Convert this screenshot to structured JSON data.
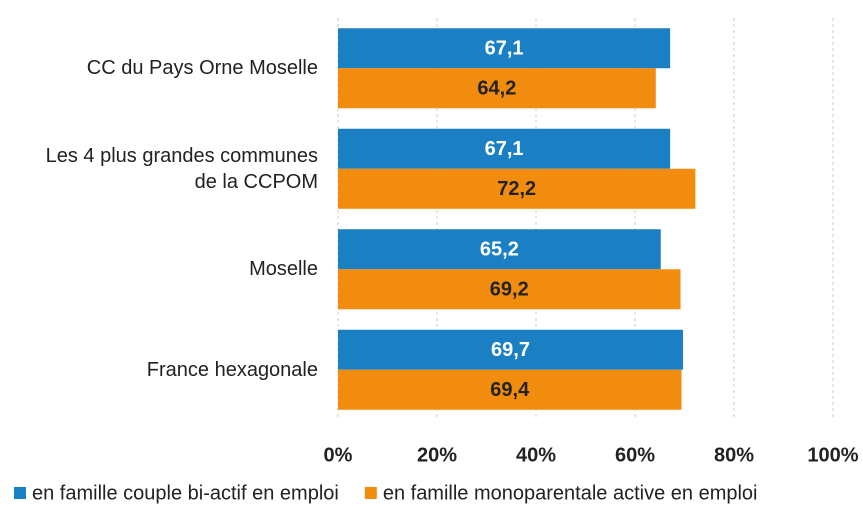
{
  "chart_data": {
    "type": "barh",
    "categories": [
      "CC du Pays Orne Moselle",
      "Les 4 plus grandes communes\nde la CCPOM",
      "Moselle",
      "France hexagonale"
    ],
    "series": [
      {
        "name": "en famille couple bi-actif en emploi",
        "color": "#1b80c3",
        "values": [
          67.1,
          67.1,
          65.2,
          69.7
        ],
        "value_labels": [
          "67,1",
          "67,1",
          "65,2",
          "69,7"
        ]
      },
      {
        "name": "en famille monoparentale active en emploi",
        "color": "#f28c0f",
        "values": [
          64.2,
          72.2,
          69.2,
          69.4
        ],
        "value_labels": [
          "64,2",
          "72,2",
          "69,2",
          "69,4"
        ]
      }
    ],
    "xlim": [
      0,
      100
    ],
    "xticks": [
      {
        "value": 0,
        "label": "0%"
      },
      {
        "value": 20,
        "label": "20%"
      },
      {
        "value": 40,
        "label": "40%"
      },
      {
        "value": 60,
        "label": "60%"
      },
      {
        "value": 80,
        "label": "80%"
      },
      {
        "value": 100,
        "label": "100%"
      }
    ],
    "grid": true,
    "legend": "bottom"
  }
}
